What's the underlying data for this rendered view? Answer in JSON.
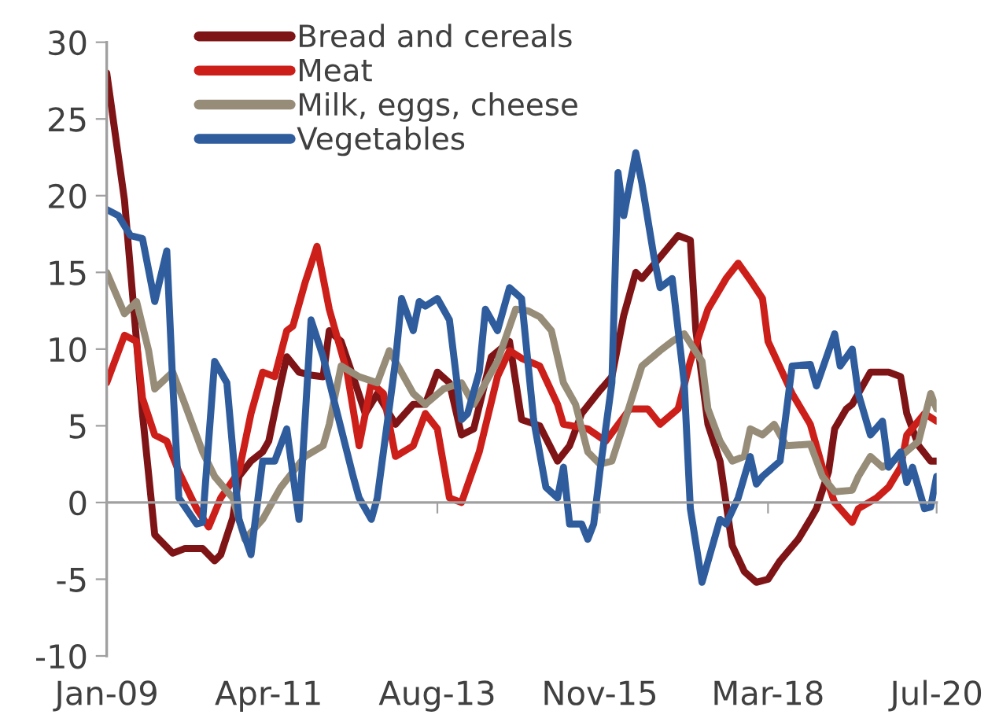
{
  "chart_data": {
    "type": "line",
    "xlim": [
      "2009-01",
      "2020-07"
    ],
    "xticks": [
      {
        "value": "2009-01",
        "label": "Jan-09"
      },
      {
        "value": "2011-04",
        "label": "Apr-11"
      },
      {
        "value": "2013-08",
        "label": "Aug-13"
      },
      {
        "value": "2015-11",
        "label": "Nov-15"
      },
      {
        "value": "2018-03",
        "label": "Mar-18"
      },
      {
        "value": "2020-07",
        "label": "Jul-20"
      }
    ],
    "ylim": [
      -10,
      30
    ],
    "yticks": [
      -10,
      -5,
      0,
      5,
      10,
      15,
      20,
      25,
      30
    ],
    "legend": "top",
    "marker": "none",
    "line_style": "solid",
    "series": [
      {
        "name": "Bread and cereals",
        "color": "#7f1416",
        "x": [
          "2009-01",
          "2009-04",
          "2009-06",
          "2009-07",
          "2009-09",
          "2009-12",
          "2010-02",
          "2010-05",
          "2010-07",
          "2010-08",
          "2010-10",
          "2010-11",
          "2011-01",
          "2011-03",
          "2011-04",
          "2011-06",
          "2011-07",
          "2011-09",
          "2011-11",
          "2012-01",
          "2012-02",
          "2012-04",
          "2012-06",
          "2012-08",
          "2012-10",
          "2013-01",
          "2013-04",
          "2013-06",
          "2013-08",
          "2013-10",
          "2013-12",
          "2014-02",
          "2014-05",
          "2014-08",
          "2014-10",
          "2015-01",
          "2015-04",
          "2015-06",
          "2015-08",
          "2015-11",
          "2016-01",
          "2016-03",
          "2016-05",
          "2016-06",
          "2016-09",
          "2016-12",
          "2017-02",
          "2017-03",
          "2017-05",
          "2017-07",
          "2017-09",
          "2017-11",
          "2018-01",
          "2018-03",
          "2018-05",
          "2018-08",
          "2018-10",
          "2018-11",
          "2019-01",
          "2019-02",
          "2019-04",
          "2019-05",
          "2019-08",
          "2019-11",
          "2020-01",
          "2020-02",
          "2020-04",
          "2020-06",
          "2020-07"
        ],
        "values": [
          28,
          19.7,
          10.5,
          5.8,
          -2.1,
          -3.3,
          -3,
          -3,
          -3.8,
          -3.4,
          -1,
          1.7,
          2.7,
          3.3,
          4,
          7.8,
          9.5,
          8.5,
          8.3,
          8.2,
          11.2,
          10.5,
          8.2,
          5.8,
          7.1,
          5.1,
          6.4,
          6.4,
          8.5,
          7.8,
          4.4,
          4.8,
          9.5,
          10.5,
          5.4,
          5,
          2.7,
          3.7,
          5.8,
          7.3,
          8.2,
          12.2,
          15,
          14.6,
          16,
          17.4,
          17.1,
          11.2,
          5.1,
          2.7,
          -2.8,
          -4.5,
          -5.2,
          -5,
          -3.8,
          -2.4,
          -1.1,
          -0.4,
          2,
          4.8,
          6.1,
          6.4,
          8.5,
          8.5,
          8.2,
          5.8,
          3.7,
          2.7,
          2.7
        ]
      },
      {
        "name": "Meat",
        "color": "#cc1f1a",
        "x": [
          "2009-01",
          "2009-04",
          "2009-06",
          "2009-07",
          "2009-09",
          "2009-11",
          "2010-01",
          "2010-04",
          "2010-06",
          "2010-08",
          "2010-11",
          "2011-01",
          "2011-03",
          "2011-05",
          "2011-07",
          "2011-08",
          "2011-10",
          "2011-12",
          "2012-02",
          "2012-05",
          "2012-07",
          "2012-09",
          "2012-11",
          "2013-01",
          "2013-04",
          "2013-06",
          "2013-08",
          "2013-10",
          "2013-12",
          "2014-03",
          "2014-06",
          "2014-08",
          "2014-10",
          "2015-01",
          "2015-04",
          "2015-05",
          "2015-09",
          "2015-12",
          "2016-04",
          "2016-07",
          "2016-09",
          "2016-12",
          "2017-02",
          "2017-05",
          "2017-08",
          "2017-10",
          "2017-12",
          "2018-02",
          "2018-03",
          "2018-07",
          "2018-10",
          "2018-12",
          "2019-02",
          "2019-05",
          "2019-06",
          "2019-09",
          "2019-11",
          "2020-01",
          "2020-02",
          "2020-05",
          "2020-07"
        ],
        "values": [
          7.8,
          10.9,
          10.5,
          6.8,
          4.4,
          4,
          2,
          -0.4,
          -1.6,
          0.3,
          2,
          5.8,
          8.5,
          8.2,
          11.2,
          11.5,
          14.3,
          16.7,
          12.6,
          8.5,
          3.7,
          7.8,
          7.1,
          3,
          3.7,
          5.8,
          4.8,
          0.3,
          0,
          3.3,
          8.2,
          9.9,
          9.4,
          8.9,
          6.4,
          5.1,
          4.8,
          4,
          6.1,
          6.1,
          5.1,
          6.1,
          9.2,
          12.6,
          14.6,
          15.6,
          14.5,
          13.3,
          10.5,
          7.1,
          5.1,
          2.3,
          0,
          -1.3,
          -0.4,
          0.3,
          1,
          2.3,
          4.4,
          5.8,
          5.3
        ]
      },
      {
        "name": "Milk, eggs, cheese",
        "color": "#968c78",
        "x": [
          "2009-01",
          "2009-04",
          "2009-06",
          "2009-08",
          "2009-09",
          "2009-12",
          "2010-02",
          "2010-05",
          "2010-07",
          "2010-10",
          "2010-12",
          "2011-03",
          "2011-06",
          "2011-10",
          "2012-01",
          "2012-02",
          "2012-04",
          "2012-07",
          "2012-10",
          "2012-12",
          "2013-04",
          "2013-06",
          "2013-09",
          "2013-12",
          "2014-02",
          "2014-06",
          "2014-09",
          "2014-11",
          "2015-01",
          "2015-03",
          "2015-05",
          "2015-07",
          "2015-09",
          "2015-11",
          "2016-01",
          "2016-03",
          "2016-06",
          "2016-09",
          "2016-11",
          "2017-01",
          "2017-04",
          "2017-05",
          "2017-07",
          "2017-09",
          "2017-11",
          "2017-12",
          "2018-02",
          "2018-04",
          "2018-06",
          "2018-10",
          "2018-12",
          "2019-02",
          "2019-05",
          "2019-06",
          "2019-08",
          "2019-10",
          "2020-01",
          "2020-04",
          "2020-06",
          "2020-07"
        ],
        "values": [
          15,
          12.3,
          13.1,
          9.9,
          7.4,
          8.5,
          6.4,
          3.3,
          1.7,
          0.3,
          -2.4,
          -1.1,
          1,
          3,
          3.7,
          5.1,
          8.9,
          8.2,
          7.8,
          9.9,
          7.1,
          6.4,
          7.4,
          7.8,
          6.4,
          9.2,
          12.6,
          12.5,
          12.1,
          11.2,
          7.8,
          6.4,
          3.3,
          2.5,
          2.7,
          5.1,
          8.9,
          9.9,
          10.5,
          11,
          9.2,
          6.1,
          4,
          2.7,
          3,
          4.8,
          4.4,
          5.1,
          3.7,
          3.8,
          1.7,
          0.7,
          0.8,
          1.7,
          3,
          2.3,
          3,
          4,
          7.1,
          6.1
        ]
      },
      {
        "name": "Vegetables",
        "color": "#2e5c9c",
        "x": [
          "2009-01",
          "2009-03",
          "2009-05",
          "2009-07",
          "2009-09",
          "2009-11",
          "2009-12",
          "2010-01",
          "2010-04",
          "2010-05",
          "2010-07",
          "2010-09",
          "2010-11",
          "2011-01",
          "2011-03",
          "2011-05",
          "2011-07",
          "2011-09",
          "2011-11",
          "2012-01",
          "2012-03",
          "2012-06",
          "2012-07",
          "2012-09",
          "2012-10",
          "2013-01",
          "2013-02",
          "2013-04",
          "2013-05",
          "2013-06",
          "2013-08",
          "2013-10",
          "2013-12",
          "2014-01",
          "2014-03",
          "2014-04",
          "2014-06",
          "2014-08",
          "2014-10",
          "2014-12",
          "2015-02",
          "2015-04",
          "2015-05",
          "2015-06",
          "2015-08",
          "2015-09",
          "2015-10",
          "2015-11",
          "2016-01",
          "2016-02",
          "2016-03",
          "2016-05",
          "2016-06",
          "2016-08",
          "2016-09",
          "2016-11",
          "2017-01",
          "2017-02",
          "2017-04",
          "2017-07",
          "2017-08",
          "2017-10",
          "2017-12",
          "2018-01",
          "2018-02",
          "2018-05",
          "2018-07",
          "2018-10",
          "2018-11",
          "2019-02",
          "2019-03",
          "2019-05",
          "2019-06",
          "2019-08",
          "2019-10",
          "2019-11",
          "2020-01",
          "2020-02",
          "2020-03",
          "2020-05",
          "2020-06",
          "2020-07"
        ],
        "values": [
          19.1,
          18.7,
          17.4,
          17.2,
          13.1,
          16.4,
          7.8,
          0.3,
          -1.4,
          -1.3,
          9.2,
          7.8,
          -1.1,
          -3.4,
          2.7,
          2.7,
          4.8,
          -1.1,
          11.9,
          9.5,
          6.4,
          1.7,
          0.3,
          -1.1,
          0.3,
          9.2,
          13.3,
          11.2,
          13.1,
          12.8,
          13.3,
          11.9,
          5.4,
          5.8,
          8.5,
          12.6,
          11.2,
          14,
          13.3,
          5.4,
          1,
          0.3,
          2.3,
          -1.4,
          -1.4,
          -2.4,
          -1.4,
          2,
          7.8,
          21.5,
          18.7,
          22.8,
          20.8,
          16,
          14,
          14.6,
          7.8,
          -0.4,
          -5.2,
          -1.1,
          -1.4,
          0.3,
          3,
          1.2,
          1.7,
          2.7,
          8.9,
          9,
          7.6,
          11,
          8.9,
          10,
          7.1,
          4.4,
          5.3,
          2.3,
          3.3,
          1.3,
          2.3,
          -0.4,
          -0.3,
          1.7
        ]
      }
    ]
  }
}
